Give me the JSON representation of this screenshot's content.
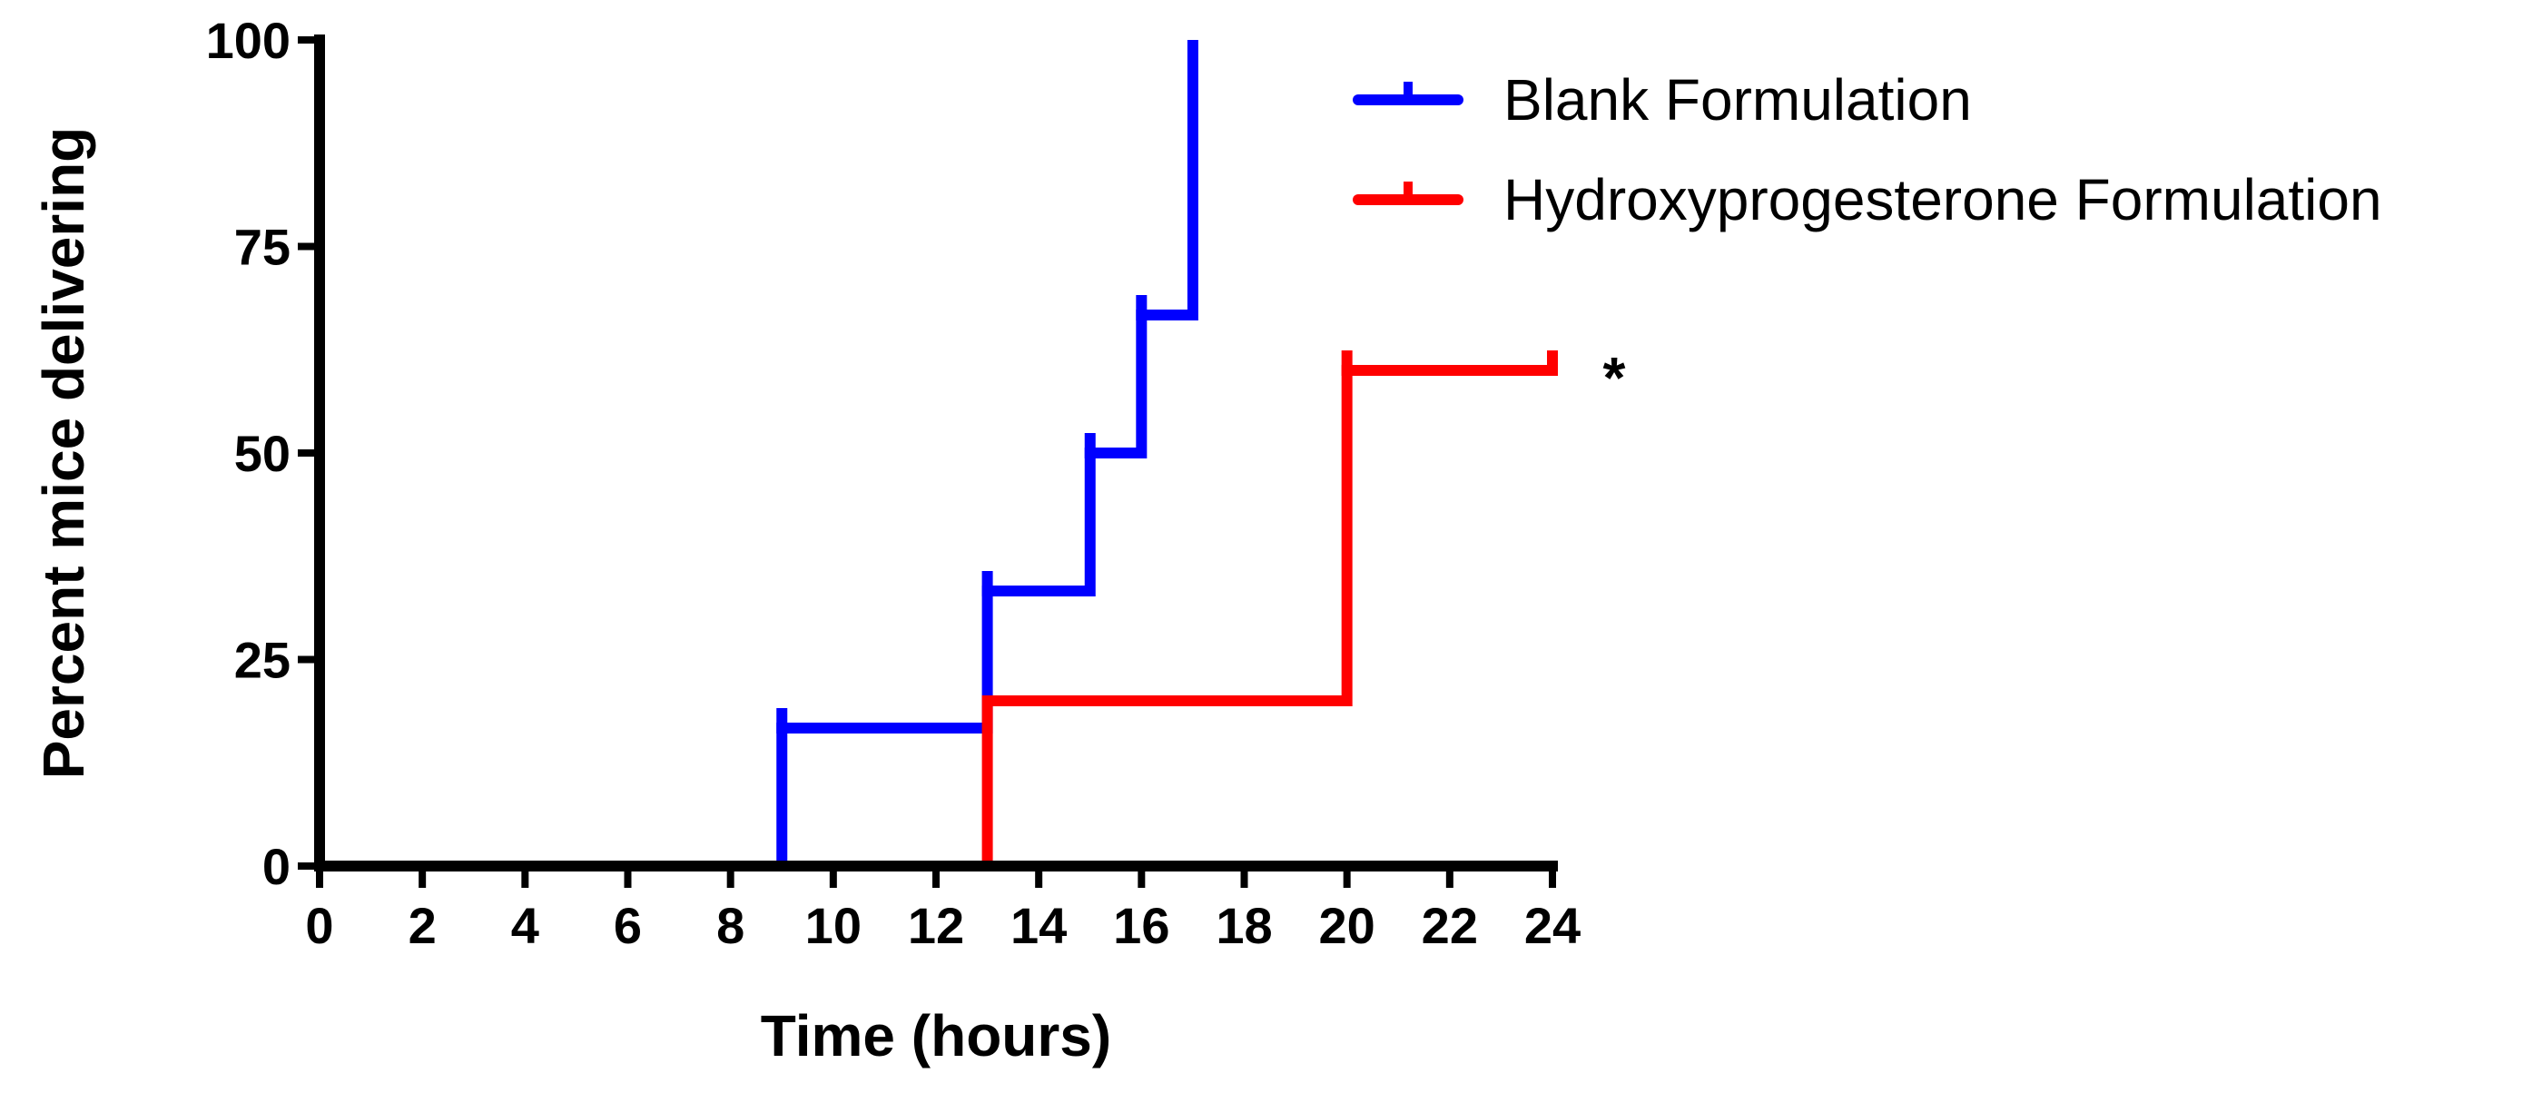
{
  "chart_data": {
    "type": "line",
    "step": true,
    "xlabel": "Time (hours)",
    "ylabel": "Percent mice delivering",
    "xlim": [
      0,
      24
    ],
    "ylim": [
      0,
      100
    ],
    "xticks": [
      0,
      2,
      4,
      6,
      8,
      10,
      12,
      14,
      16,
      18,
      20,
      22,
      24
    ],
    "yticks": [
      0,
      25,
      50,
      75,
      100
    ],
    "grid": false,
    "legend_position": "top-right",
    "series": [
      {
        "name": "Blank Formulation",
        "color": "#0000ff",
        "x": [
          0,
          9,
          13,
          15,
          16,
          17
        ],
        "y": [
          0,
          16.7,
          33.3,
          50,
          66.7,
          100
        ],
        "censored": [
          {
            "x": 9,
            "y": 16.7
          },
          {
            "x": 13,
            "y": 33.3
          },
          {
            "x": 15,
            "y": 50
          },
          {
            "x": 16,
            "y": 66.7
          }
        ]
      },
      {
        "name": "Hydroxyprogesterone Formulation",
        "color": "#ff0000",
        "x": [
          0,
          13,
          20,
          24
        ],
        "y": [
          0,
          20,
          60,
          60
        ],
        "censored": [
          {
            "x": 20,
            "y": 60
          },
          {
            "x": 24,
            "y": 60
          }
        ]
      }
    ],
    "annotations": [
      {
        "text": "*",
        "x": 24,
        "y": 60
      }
    ]
  }
}
